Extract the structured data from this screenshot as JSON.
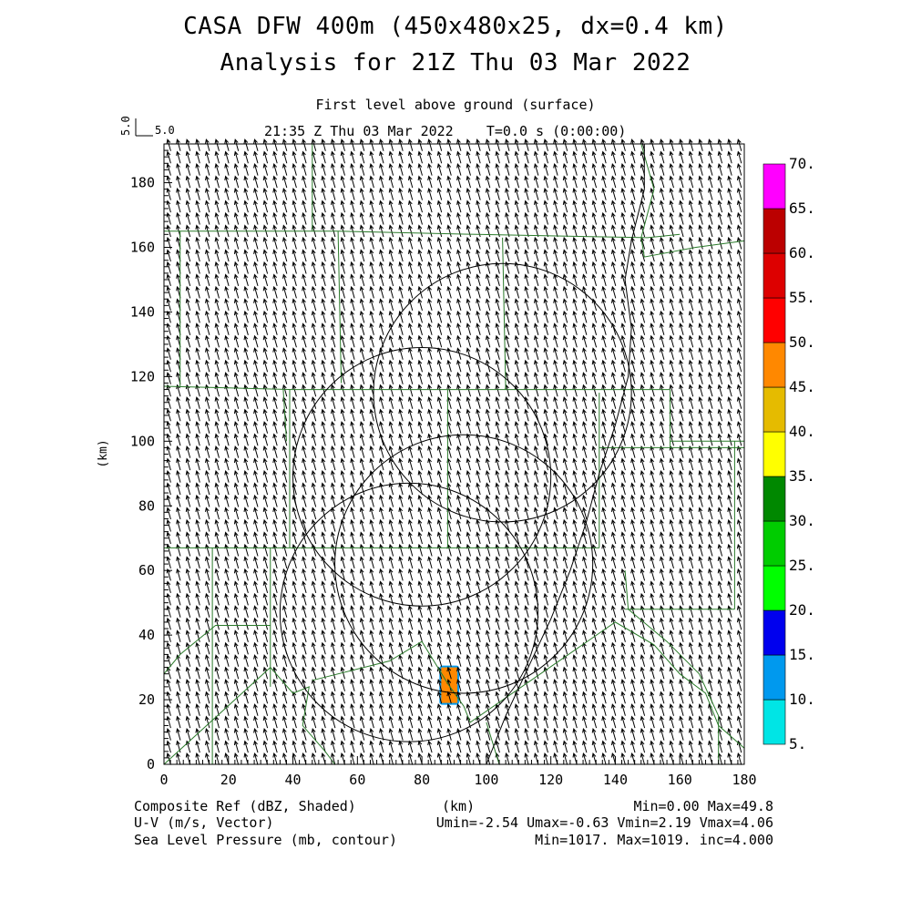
{
  "header": {
    "title_line1": "CASA DFW 400m (450x480x25, dx=0.4 km)",
    "title_line2": "Analysis for 21Z Thu 03 Mar 2022",
    "level_label": "First level above ground (surface)",
    "time_label": "21:35 Z Thu 03 Mar 2022    T=0.0 s (0:00:00)",
    "vector_scale_value": "5.0",
    "vector_scale_label": "5.0"
  },
  "footer": {
    "line1_left": "Composite Ref (dBZ, Shaded)",
    "line1_center": "(km)",
    "line1_right": "Min=0.00 Max=49.8",
    "line2_left": "U-V (m/s, Vector)",
    "line2_right": "Umin=-2.54 Umax=-0.63 Vmin=2.19 Vmax=4.06",
    "line3_left": "Sea Level Pressure (mb, contour)",
    "line3_right": "Min=1017. Max=1019. inc=4.000"
  },
  "colorbar": {
    "levels": [
      "5.",
      "10.",
      "15.",
      "20.",
      "25.",
      "30.",
      "35.",
      "40.",
      "45.",
      "50.",
      "55.",
      "60.",
      "65.",
      "70."
    ],
    "colors": [
      "#00e5e5",
      "#0099ee",
      "#0000ee",
      "#00ff00",
      "#00cc00",
      "#008800",
      "#ffff00",
      "#e5bb00",
      "#ff8800",
      "#ff0000",
      "#dd0000",
      "#bb0000",
      "#ff00ff"
    ]
  },
  "chart_data": {
    "type": "heatmap",
    "title": "CASA DFW 400m (450x480x25, dx=0.4 km)",
    "subtitle": "Analysis for 21Z Thu 03 Mar 2022",
    "xlabel": "(km)",
    "ylabel": "(km)",
    "xlim": [
      0,
      180
    ],
    "ylim": [
      0,
      192
    ],
    "x_ticks": [
      0,
      20,
      40,
      60,
      80,
      100,
      120,
      140,
      160,
      180
    ],
    "y_ticks": [
      0,
      20,
      40,
      60,
      80,
      100,
      120,
      140,
      160,
      180
    ],
    "reflectivity_cell": {
      "x_range": [
        86,
        91
      ],
      "y_range": [
        19,
        30
      ],
      "value_dbz": 49.8,
      "outer_value_dbz": 10
    },
    "wind_vector": {
      "u": -0.9,
      "v": 3.2
    },
    "radar_range_rings": [
      {
        "center": [
          76,
          47
        ],
        "radius": 40
      },
      {
        "center": [
          93,
          62
        ],
        "radius": 40
      },
      {
        "center": [
          80,
          89
        ],
        "radius": 40
      },
      {
        "center": [
          105,
          115
        ],
        "radius": 40
      }
    ],
    "pressure_contour": [
      [
        100,
        0
      ],
      [
        106,
        15
      ],
      [
        113,
        30
      ],
      [
        120,
        45
      ],
      [
        126,
        60
      ],
      [
        131,
        75
      ],
      [
        135,
        90
      ],
      [
        140,
        105
      ],
      [
        144,
        120
      ],
      [
        145,
        135
      ],
      [
        143,
        150
      ],
      [
        145,
        162
      ],
      [
        149,
        178
      ],
      [
        149,
        192
      ]
    ],
    "county_boundaries": [
      [
        [
          0,
          165
        ],
        [
          54,
          165
        ],
        [
          97,
          164
        ],
        [
          150,
          163
        ],
        [
          160,
          164
        ]
      ],
      [
        [
          46,
          192
        ],
        [
          46,
          165
        ]
      ],
      [
        [
          5,
          165
        ],
        [
          5,
          117
        ]
      ],
      [
        [
          54,
          165
        ],
        [
          55,
          118
        ]
      ],
      [
        [
          0,
          117
        ],
        [
          40,
          116
        ],
        [
          105,
          116
        ],
        [
          157,
          116
        ]
      ],
      [
        [
          105,
          163
        ],
        [
          106,
          116
        ]
      ],
      [
        [
          39,
          116
        ],
        [
          39,
          67
        ]
      ],
      [
        [
          88,
          116
        ],
        [
          88,
          67
        ]
      ],
      [
        [
          0,
          67
        ],
        [
          135,
          67
        ]
      ],
      [
        [
          135,
          115
        ],
        [
          135,
          67
        ]
      ],
      [
        [
          157,
          116
        ],
        [
          157,
          98
        ]
      ],
      [
        [
          135,
          98
        ],
        [
          180,
          98
        ]
      ],
      [
        [
          148,
          192
        ],
        [
          152,
          178
        ],
        [
          148,
          163
        ],
        [
          149,
          157
        ],
        [
          165,
          160
        ],
        [
          180,
          162
        ]
      ],
      [
        [
          157,
          100
        ],
        [
          180,
          100
        ]
      ],
      [
        [
          177,
          100
        ],
        [
          177,
          48
        ]
      ],
      [
        [
          143,
          48
        ],
        [
          177,
          48
        ]
      ],
      [
        [
          15,
          67
        ],
        [
          15,
          0
        ]
      ],
      [
        [
          33,
          67
        ],
        [
          33,
          24
        ]
      ],
      [
        [
          0,
          0
        ],
        [
          33,
          30
        ]
      ],
      [
        [
          33,
          30
        ],
        [
          40,
          22
        ],
        [
          45,
          24
        ],
        [
          43,
          12
        ],
        [
          50,
          4
        ],
        [
          53,
          0
        ]
      ],
      [
        [
          0,
          28
        ],
        [
          5,
          34
        ],
        [
          16,
          43
        ],
        [
          33,
          43
        ]
      ],
      [
        [
          46,
          26
        ],
        [
          70,
          32
        ],
        [
          80,
          38
        ],
        [
          88,
          25
        ]
      ],
      [
        [
          88,
          25
        ],
        [
          93,
          18
        ],
        [
          95,
          13
        ],
        [
          140,
          44
        ],
        [
          152,
          37
        ],
        [
          160,
          28
        ],
        [
          168,
          22
        ],
        [
          172,
          12
        ],
        [
          180,
          5
        ]
      ],
      [
        [
          143,
          60
        ],
        [
          144,
          48
        ],
        [
          156,
          38
        ],
        [
          166,
          28
        ],
        [
          172,
          15
        ],
        [
          172,
          0
        ]
      ],
      [
        [
          100,
          13
        ],
        [
          104,
          0
        ]
      ],
      [
        [
          37,
          116
        ],
        [
          38,
          100
        ]
      ]
    ]
  }
}
